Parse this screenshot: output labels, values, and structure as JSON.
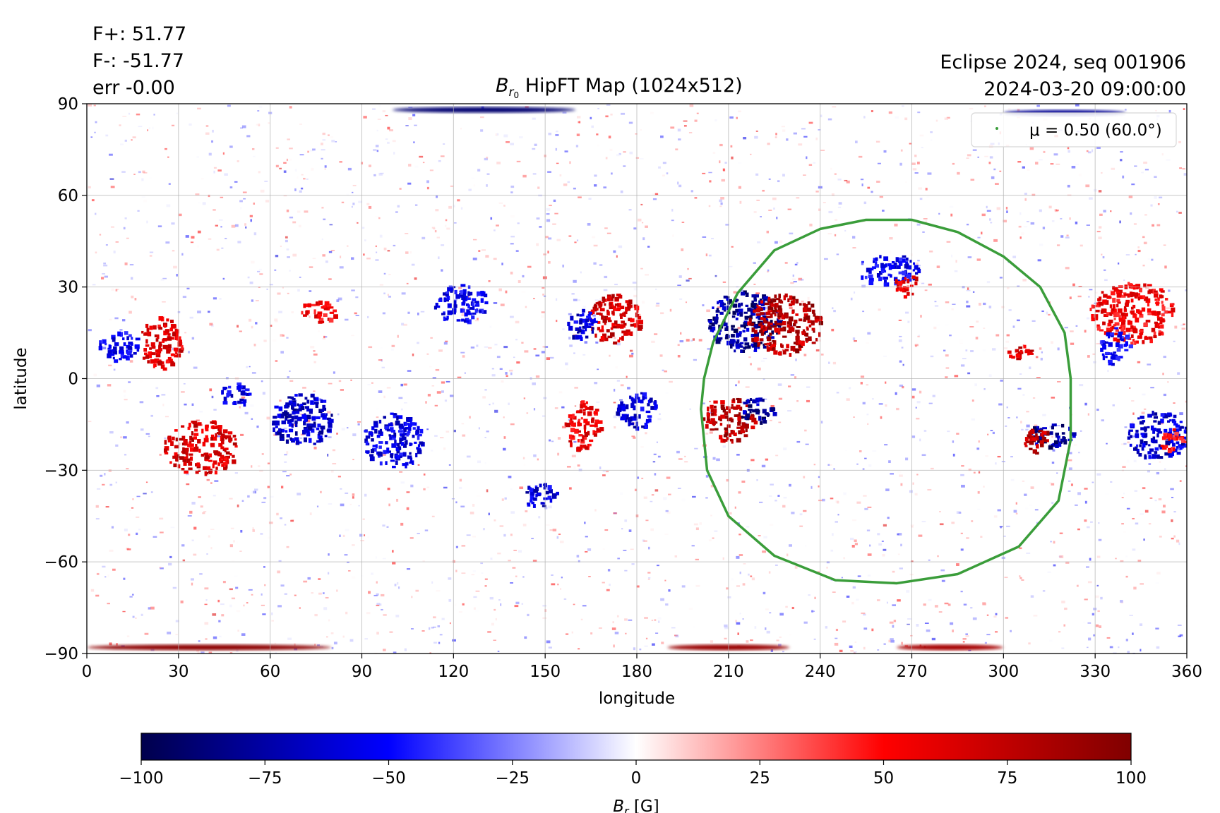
{
  "stats": {
    "flux_plus": "F+: 51.77",
    "flux_minus": "F-: -51.77",
    "error": "err -0.00"
  },
  "event": {
    "name": "Eclipse 2024, seq 001906",
    "datetime": "2024-03-20 09:00:00"
  },
  "chart_data": {
    "type": "heatmap",
    "title": "B_r0 HipFT Map (1024x512)",
    "title_symbol": "B",
    "title_subscript": "r",
    "title_subsubscript": "0",
    "title_rest": "HipFT Map (1024x512)",
    "xlabel": "longitude",
    "ylabel": "latitude",
    "xlim": [
      0,
      360
    ],
    "ylim": [
      -90,
      90
    ],
    "xticks": [
      0,
      30,
      60,
      90,
      120,
      150,
      180,
      210,
      240,
      270,
      300,
      330,
      360
    ],
    "yticks": [
      -90,
      -60,
      -30,
      0,
      30,
      60,
      90
    ],
    "ytick_labels": [
      "−90",
      "−60",
      "−30",
      "0",
      "30",
      "60",
      "90"
    ],
    "grid": true,
    "colormap": "seismic",
    "color_range": [
      -100,
      100
    ],
    "colorbar": {
      "label_symbol": "B",
      "label_subscript": "r",
      "label_unit": "[G]",
      "ticks": [
        -100,
        -75,
        -50,
        -25,
        0,
        25,
        50,
        75,
        100
      ],
      "tick_labels": [
        "−100",
        "−75",
        "−50",
        "−25",
        "0",
        "25",
        "50",
        "75",
        "100"
      ],
      "colors": {
        "min": "#00004c",
        "mid_low": "#0000ff",
        "center": "#ffffff",
        "mid_high": "#ff0000",
        "max": "#800000"
      }
    },
    "legend": {
      "placement": "upper right",
      "entry": "μ = 0.50 (60.0°)",
      "color": "#3a9d3a"
    },
    "contour": {
      "label": "μ = 0.50 (60.0°)",
      "color": "#3a9d3a",
      "points": [
        [
          205,
          12
        ],
        [
          213,
          28
        ],
        [
          225,
          42
        ],
        [
          240,
          49
        ],
        [
          255,
          52
        ],
        [
          270,
          52
        ],
        [
          285,
          48
        ],
        [
          300,
          40
        ],
        [
          312,
          30
        ],
        [
          320,
          15
        ],
        [
          322,
          0
        ],
        [
          322,
          -20
        ],
        [
          318,
          -40
        ],
        [
          305,
          -55
        ],
        [
          285,
          -64
        ],
        [
          265,
          -67
        ],
        [
          245,
          -66
        ],
        [
          225,
          -58
        ],
        [
          210,
          -45
        ],
        [
          203,
          -30
        ],
        [
          201,
          -10
        ],
        [
          202,
          0
        ],
        [
          205,
          12
        ]
      ]
    },
    "regions": [
      {
        "name": "ar-1-neg",
        "lon": 215,
        "lat": 19,
        "value": -100,
        "dlon": 12,
        "dlat": 10
      },
      {
        "name": "ar-1-pos",
        "lon": 228,
        "lat": 18,
        "value": 100,
        "dlon": 12,
        "dlat": 10
      },
      {
        "name": "ar-2-pos",
        "lon": 210,
        "lat": -13,
        "value": 100,
        "dlon": 9,
        "dlat": 7
      },
      {
        "name": "ar-2-neg",
        "lon": 219,
        "lat": -10,
        "value": -100,
        "dlon": 6,
        "dlat": 4
      },
      {
        "name": "ar-3-neg",
        "lon": 315,
        "lat": -18,
        "value": -100,
        "dlon": 8,
        "dlat": 4
      },
      {
        "name": "ar-3-pos",
        "lon": 311,
        "lat": -20,
        "value": 100,
        "dlon": 5,
        "dlat": 4
      },
      {
        "name": "ar-4-pos",
        "lon": 172,
        "lat": 20,
        "value": 85,
        "dlon": 9,
        "dlat": 8
      },
      {
        "name": "ar-4-neg",
        "lon": 162,
        "lat": 18,
        "value": -80,
        "dlon": 5,
        "dlat": 5
      },
      {
        "name": "ar-5-pos",
        "lon": 37,
        "lat": -22,
        "value": 85,
        "dlon": 12,
        "dlat": 9
      },
      {
        "name": "ar-5-neg",
        "lon": 70,
        "lat": -13,
        "value": -85,
        "dlon": 10,
        "dlat": 9
      },
      {
        "name": "ar-6-pos",
        "lon": 24,
        "lat": 12,
        "value": 80,
        "dlon": 7,
        "dlat": 9
      },
      {
        "name": "ar-6-neg",
        "lon": 10,
        "lat": 11,
        "value": -70,
        "dlon": 7,
        "dlat": 5
      },
      {
        "name": "ar-7-neg",
        "lon": 180,
        "lat": -10,
        "value": -80,
        "dlon": 7,
        "dlat": 6
      },
      {
        "name": "ar-8-neg",
        "lon": 100,
        "lat": -20,
        "value": -75,
        "dlon": 10,
        "dlat": 9
      },
      {
        "name": "ar-9-neg",
        "lon": 122,
        "lat": 25,
        "value": -70,
        "dlon": 9,
        "dlat": 6
      },
      {
        "name": "ar-10-neg",
        "lon": 148,
        "lat": -38,
        "value": -80,
        "dlon": 6,
        "dlat": 4
      },
      {
        "name": "ar-11-pos",
        "lon": 162,
        "lat": -15,
        "value": 75,
        "dlon": 6,
        "dlat": 8
      },
      {
        "name": "ar-12-neg",
        "lon": 350,
        "lat": -18,
        "value": -80,
        "dlon": 10,
        "dlat": 8
      },
      {
        "name": "ar-13-pos",
        "lon": 342,
        "lat": 22,
        "value": 70,
        "dlon": 14,
        "dlat": 10
      },
      {
        "name": "ar-14-pos",
        "lon": 305,
        "lat": 9,
        "value": 85,
        "dlon": 4,
        "dlat": 3
      },
      {
        "name": "ar-15-neg",
        "lon": 262,
        "lat": 36,
        "value": -70,
        "dlon": 10,
        "dlat": 5
      },
      {
        "name": "ar-16-pos",
        "lon": 268,
        "lat": 31,
        "value": 75,
        "dlon": 4,
        "dlat": 4
      },
      {
        "name": "ar-17-pos",
        "lon": 75,
        "lat": 22,
        "value": 70,
        "dlon": 6,
        "dlat": 4
      },
      {
        "name": "ar-18-neg",
        "lon": 48,
        "lat": -5,
        "value": -75,
        "dlon": 5,
        "dlat": 4
      },
      {
        "name": "ar-19-neg",
        "lon": 336,
        "lat": 11,
        "value": -65,
        "dlon": 5,
        "dlat": 6
      },
      {
        "name": "ar-20-pos",
        "lon": 355,
        "lat": -20,
        "value": 60,
        "dlon": 4,
        "dlat": 4
      }
    ],
    "polar_bands": [
      {
        "name": "north-pole-neg",
        "lon_from": 100,
        "lon_to": 160,
        "lat": 88,
        "value": -90
      },
      {
        "name": "north-pole-neg-2",
        "lon_from": 300,
        "lon_to": 340,
        "lat": 87,
        "value": -80
      },
      {
        "name": "south-pole-pos",
        "lon_from": 0,
        "lon_to": 80,
        "lat": -88,
        "value": 95
      },
      {
        "name": "south-pole-pos-2",
        "lon_from": 190,
        "lon_to": 230,
        "lat": -88,
        "value": 90
      },
      {
        "name": "south-pole-pos-3",
        "lon_from": 265,
        "lon_to": 300,
        "lat": -88,
        "value": 85
      }
    ]
  }
}
